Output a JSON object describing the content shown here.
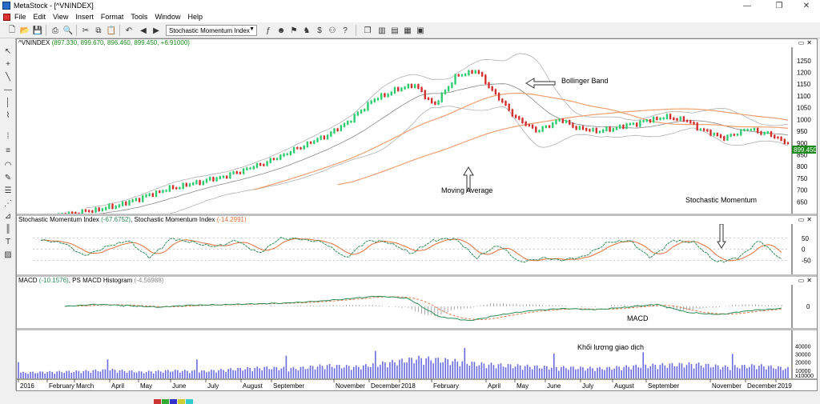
{
  "window": {
    "title": "MetaStock - [^VNINDEX]",
    "buttons": {
      "minimize": "—",
      "maximize": "❐",
      "close": "✕"
    }
  },
  "menu": [
    "File",
    "Edit",
    "View",
    "Insert",
    "Format",
    "Tools",
    "Window",
    "Help"
  ],
  "mdi_buttons": {
    "minimize": "—",
    "restore": "❐",
    "close": "✕"
  },
  "toolbar": {
    "indicator_select": "Stochastic Momentum Index"
  },
  "price_pane": {
    "title": "^VNINDEX",
    "values": "(897.330, 899.670, 896.460, 899.450, +6.91000)",
    "last_price": "899.450",
    "y_ticks": [
      "1250",
      "1200",
      "1150",
      "1100",
      "1050",
      "1000",
      "950",
      "900",
      "850",
      "800",
      "750",
      "700",
      "650"
    ]
  },
  "smi_pane": {
    "title": "Stochastic Momentum Index",
    "value1": "(-67.6752)",
    "title2": "Stochastic Momentum Index",
    "value2": "(-14.2991)",
    "y_ticks": [
      "50",
      "0",
      "-50"
    ]
  },
  "macd_pane": {
    "title": "MACD",
    "value1": "(-10.1576)",
    "title2": "PS MACD Histogram",
    "value2": "(-4.56988)",
    "y_ticks": [
      "0"
    ]
  },
  "volume_pane": {
    "y_ticks": [
      "40000",
      "30000",
      "20000",
      "10000",
      "x10000"
    ]
  },
  "x_axis": [
    "2016",
    "February",
    "March",
    "April",
    "May",
    "June",
    "July",
    "August",
    "September",
    "November",
    "December",
    "2018",
    "February",
    "April",
    "May",
    "June",
    "July",
    "August",
    "September",
    "November",
    "December",
    "2019"
  ],
  "annotations": {
    "bollinger": "Bollinger Band",
    "ma": "Moving Average",
    "stoch": "Stochastic Momentum",
    "macd": "MACD",
    "volume": "Khối lượng giao dịch"
  },
  "colors": {
    "up_candle": "#2ecc71",
    "down_candle": "#d32f2f",
    "ma_orange": "#f0a070",
    "bb_gray": "#b0b0b0",
    "smi_green": "#2e8b57",
    "smi_red": "#e0703a",
    "volume": "#6a6ae0",
    "price_tag": "#1a8a1a"
  },
  "chart_data": {
    "type": "line",
    "title": "^VNINDEX",
    "x_labels": [
      "2016",
      "February",
      "March",
      "April",
      "May",
      "June",
      "July",
      "August",
      "September",
      "November",
      "December",
      "2018",
      "February",
      "April",
      "May",
      "June",
      "July",
      "August",
      "September",
      "November",
      "December",
      "2019"
    ],
    "price": [
      575,
      585,
      595,
      605,
      620,
      640,
      670,
      700,
      720,
      740,
      760,
      790,
      820,
      860,
      900,
      940,
      1000,
      1080,
      1120,
      1150,
      1060,
      1180,
      1210,
      1100,
      1000,
      950,
      1000,
      960,
      950,
      970,
      990,
      1010,
      1000,
      950,
      920,
      960,
      940,
      900
    ],
    "ylim": [
      600,
      1280
    ],
    "smi": [
      40,
      30,
      -30,
      10,
      40,
      -40,
      50,
      30,
      10,
      40,
      -20,
      50,
      45,
      30,
      -40,
      40,
      30,
      -20,
      40,
      50,
      -40,
      20,
      -60,
      -40,
      -50,
      -30,
      30,
      40,
      -40,
      40,
      30,
      -60,
      -40,
      40,
      -50
    ],
    "macd": [
      0,
      5,
      2,
      -2,
      3,
      4,
      6,
      8,
      12,
      18,
      25,
      20,
      -25,
      -35,
      -20,
      -10,
      -5,
      -8,
      -2,
      5,
      -15,
      -20,
      -10,
      -5
    ],
    "volume": [
      8000,
      9000,
      10000,
      12000,
      9000,
      11000,
      10000,
      13000,
      15000,
      14000,
      18000,
      16000,
      22000,
      28000,
      25000,
      20000,
      18000,
      16000,
      15000,
      14000,
      17000,
      19000,
      20000,
      16000,
      18000,
      14000
    ]
  }
}
